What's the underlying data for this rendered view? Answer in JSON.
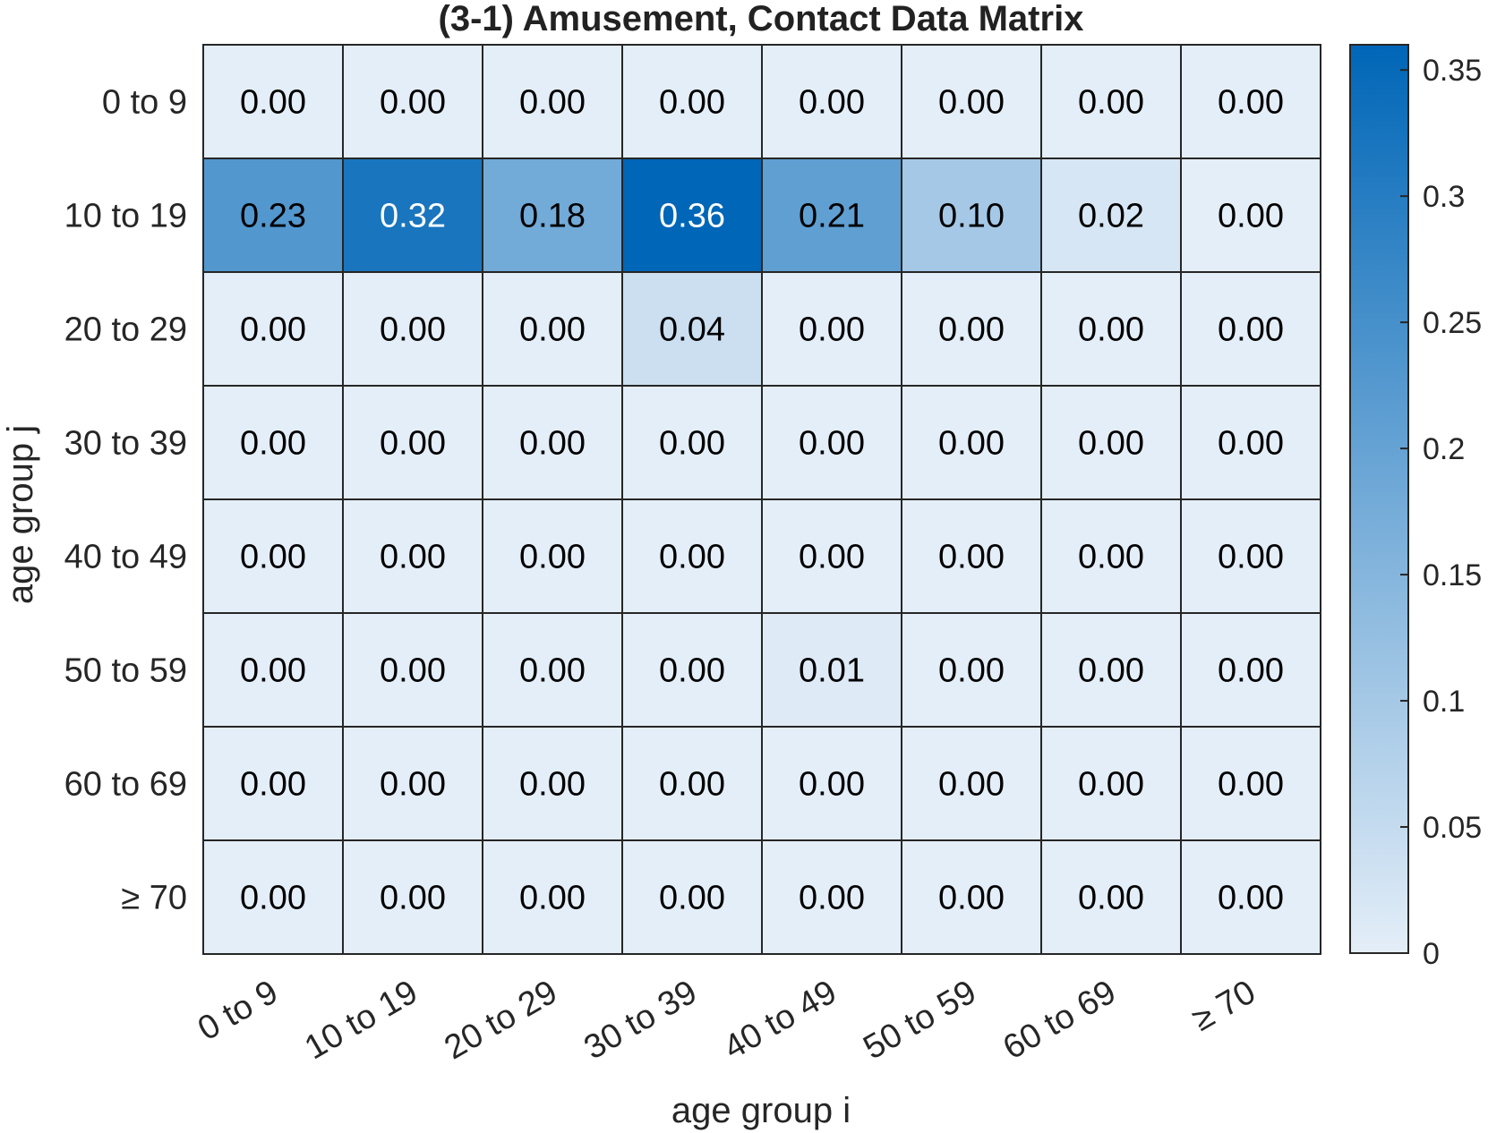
{
  "chart_data": {
    "type": "heatmap",
    "title": "(3-1) Amusement, Contact Data Matrix",
    "xlabel": "age group i",
    "ylabel": "age group j",
    "x_categories": [
      "0 to 9",
      "10 to 19",
      "20 to 29",
      "30 to 39",
      "40 to 49",
      "50 to 59",
      "60 to 69",
      "≥ 70"
    ],
    "y_categories": [
      "0 to 9",
      "10 to 19",
      "20 to 29",
      "30 to 39",
      "40 to 49",
      "50 to 59",
      "60 to 69",
      "≥ 70"
    ],
    "values": [
      [
        0.0,
        0.0,
        0.0,
        0.0,
        0.0,
        0.0,
        0.0,
        0.0
      ],
      [
        0.23,
        0.32,
        0.18,
        0.36,
        0.21,
        0.1,
        0.02,
        0.0
      ],
      [
        0.0,
        0.0,
        0.0,
        0.04,
        0.0,
        0.0,
        0.0,
        0.0
      ],
      [
        0.0,
        0.0,
        0.0,
        0.0,
        0.0,
        0.0,
        0.0,
        0.0
      ],
      [
        0.0,
        0.0,
        0.0,
        0.0,
        0.0,
        0.0,
        0.0,
        0.0
      ],
      [
        0.0,
        0.0,
        0.0,
        0.0,
        0.01,
        0.0,
        0.0,
        0.0
      ],
      [
        0.0,
        0.0,
        0.0,
        0.0,
        0.0,
        0.0,
        0.0,
        0.0
      ],
      [
        0.0,
        0.0,
        0.0,
        0.0,
        0.0,
        0.0,
        0.0,
        0.0
      ]
    ],
    "value_format_decimals": 2,
    "colorbar": {
      "range": [
        0,
        0.36
      ],
      "ticks": [
        0,
        0.05,
        0.1,
        0.15,
        0.2,
        0.25,
        0.3,
        0.35
      ],
      "tick_labels": [
        "0",
        "0.05",
        "0.1",
        "0.15",
        "0.2",
        "0.25",
        "0.3",
        "0.35"
      ],
      "color_low": "#e4eef8",
      "color_high": "#0066b7"
    },
    "grid": true,
    "legend": "none"
  }
}
